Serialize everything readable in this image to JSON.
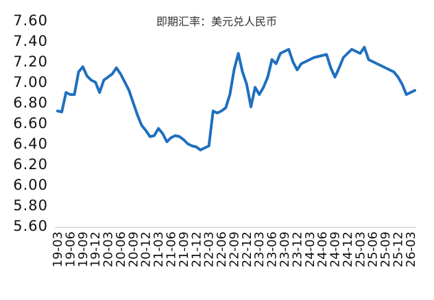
{
  "chart_data": {
    "type": "line",
    "title": "即期汇率：美元兑人民币",
    "xlabel": "",
    "ylabel": "",
    "ylim": [
      5.6,
      7.6
    ],
    "yticks": [
      "5.60",
      "5.80",
      "6.00",
      "6.20",
      "6.40",
      "6.60",
      "6.80",
      "7.00",
      "7.20",
      "7.40",
      "7.60"
    ],
    "xticks": [
      "19-03",
      "19-06",
      "19-09",
      "19-12",
      "20-03",
      "20-06",
      "20-09",
      "20-12",
      "21-03",
      "21-06",
      "21-09",
      "21-12",
      "22-03",
      "22-06",
      "22-09",
      "22-12",
      "23-03",
      "23-06",
      "23-09",
      "23-12",
      "24-03",
      "24-06",
      "24-09",
      "24-12",
      "25-03",
      "25-06",
      "25-09",
      "25-12",
      "26-03"
    ],
    "grid": false,
    "legend": "none",
    "series": [
      {
        "color": "#1f6fbf",
        "x": [
          "19-03",
          "19-04",
          "19-05",
          "19-06",
          "19-07",
          "19-08",
          "19-09",
          "19-10",
          "19-11",
          "19-12",
          "20-01",
          "20-02",
          "20-03",
          "20-04",
          "20-05",
          "20-06",
          "20-07",
          "20-08",
          "20-09",
          "20-10",
          "20-11",
          "20-12",
          "21-01",
          "21-02",
          "21-03",
          "21-04",
          "21-05",
          "21-06",
          "21-07",
          "21-08",
          "21-09",
          "21-10",
          "21-11",
          "21-12",
          "22-01",
          "22-02",
          "22-03",
          "22-04",
          "22-05",
          "22-06",
          "22-07",
          "22-08",
          "22-09",
          "22-10",
          "22-11",
          "22-12",
          "23-01",
          "23-02",
          "23-03",
          "23-04",
          "23-05",
          "23-06",
          "23-07",
          "23-08",
          "23-09",
          "23-10",
          "23-11",
          "23-12",
          "24-01",
          "24-02",
          "24-03",
          "24-04",
          "24-05",
          "24-06",
          "24-07",
          "24-08",
          "24-09",
          "24-10",
          "24-11",
          "24-12",
          "25-01",
          "25-02",
          "25-03",
          "25-04",
          "25-05",
          "25-06",
          "25-07",
          "25-08",
          "25-09",
          "25-10",
          "25-11",
          "25-12",
          "26-01",
          "26-02",
          "26-03",
          "26-04"
        ],
        "values": [
          6.72,
          6.71,
          6.9,
          6.88,
          6.88,
          7.1,
          7.15,
          7.06,
          7.02,
          7.0,
          6.9,
          7.02,
          7.05,
          7.08,
          7.14,
          7.08,
          7.0,
          6.92,
          6.8,
          6.68,
          6.58,
          6.53,
          6.47,
          6.48,
          6.55,
          6.5,
          6.42,
          6.46,
          6.48,
          6.47,
          6.44,
          6.4,
          6.38,
          6.37,
          6.34,
          6.36,
          6.38,
          6.72,
          6.7,
          6.72,
          6.75,
          6.88,
          7.12,
          7.28,
          7.1,
          6.98,
          6.76,
          6.95,
          6.88,
          6.95,
          7.05,
          7.22,
          7.18,
          7.28,
          7.3,
          7.32,
          7.2,
          7.12,
          7.18,
          7.2,
          7.22,
          7.24,
          7.25,
          7.26,
          7.27,
          7.14,
          7.05,
          7.14,
          7.24,
          7.28,
          7.32,
          7.3,
          7.28,
          7.34,
          7.22,
          7.2,
          7.18,
          7.16,
          7.14,
          7.12,
          7.1,
          7.05,
          6.98,
          6.88,
          6.9,
          6.92
        ]
      }
    ]
  }
}
